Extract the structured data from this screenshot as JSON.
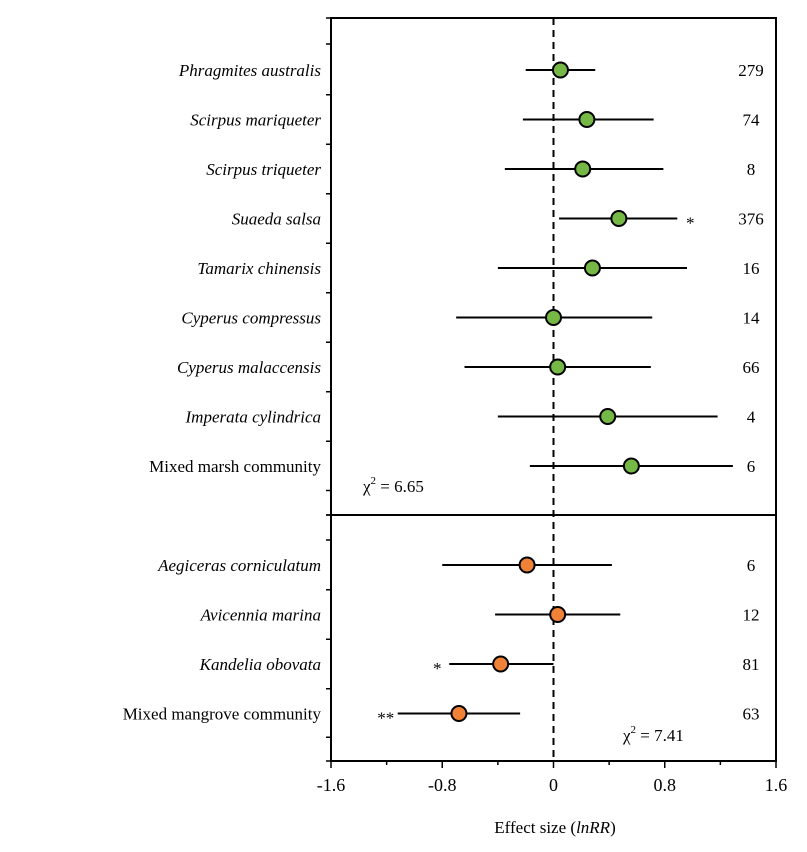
{
  "chart_data": {
    "type": "forest",
    "xlabel_prefix": "Effect size (",
    "xlabel_italic": "lnRR",
    "xlabel_suffix": ")",
    "xlim": [
      -1.6,
      1.6
    ],
    "xticks": [
      "-1.6",
      "-0.8",
      "0",
      "0.8",
      "1.6"
    ],
    "reference_line": 0,
    "groups": [
      {
        "name": "marsh",
        "color": "#76b846",
        "stat_symbol": "χ",
        "stat_sup": "2",
        "stat_value": " = 6.65",
        "rows": [
          {
            "label": "Phragmites australis",
            "italic": true,
            "mean": 0.05,
            "lo": -0.2,
            "hi": 0.3,
            "n": "279",
            "sig": ""
          },
          {
            "label": "Scirpus mariqueter",
            "italic": true,
            "mean": 0.24,
            "lo": -0.22,
            "hi": 0.72,
            "n": "74",
            "sig": ""
          },
          {
            "label": "Scirpus triqueter",
            "italic": true,
            "mean": 0.21,
            "lo": -0.35,
            "hi": 0.79,
            "n": "8",
            "sig": ""
          },
          {
            "label": "Suaeda salsa",
            "italic": true,
            "mean": 0.47,
            "lo": 0.04,
            "hi": 0.89,
            "n": "376",
            "sig": "*"
          },
          {
            "label": "Tamarix chinensis",
            "italic": true,
            "mean": 0.28,
            "lo": -0.4,
            "hi": 0.96,
            "n": "16",
            "sig": ""
          },
          {
            "label": "Cyperus compressus",
            "italic": true,
            "mean": 0.0,
            "lo": -0.7,
            "hi": 0.71,
            "n": "14",
            "sig": ""
          },
          {
            "label": "Cyperus malaccensis",
            "italic": true,
            "mean": 0.03,
            "lo": -0.64,
            "hi": 0.7,
            "n": "66",
            "sig": ""
          },
          {
            "label": "Imperata cylindrica",
            "italic": true,
            "mean": 0.39,
            "lo": -0.4,
            "hi": 1.18,
            "n": "4",
            "sig": ""
          },
          {
            "label": "Mixed marsh community",
            "italic": false,
            "mean": 0.56,
            "lo": -0.17,
            "hi": 1.29,
            "n": "6",
            "sig": ""
          }
        ]
      },
      {
        "name": "mangrove",
        "color": "#ef8236",
        "stat_symbol": "χ",
        "stat_sup": "2",
        "stat_value": " = 7.41",
        "rows": [
          {
            "label": "Aegiceras corniculatum",
            "italic": true,
            "mean": -0.19,
            "lo": -0.8,
            "hi": 0.42,
            "n": "6",
            "sig": ""
          },
          {
            "label": "Avicennia marina",
            "italic": true,
            "mean": 0.03,
            "lo": -0.42,
            "hi": 0.48,
            "n": "12",
            "sig": ""
          },
          {
            "label": "Kandelia obovata",
            "italic": true,
            "mean": -0.38,
            "lo": -0.75,
            "hi": 0.0,
            "n": "81",
            "sig": "*"
          },
          {
            "label": "Mixed mangrove community",
            "italic": false,
            "mean": -0.68,
            "lo": -1.12,
            "hi": -0.24,
            "n": "63",
            "sig": "**"
          }
        ]
      }
    ]
  }
}
